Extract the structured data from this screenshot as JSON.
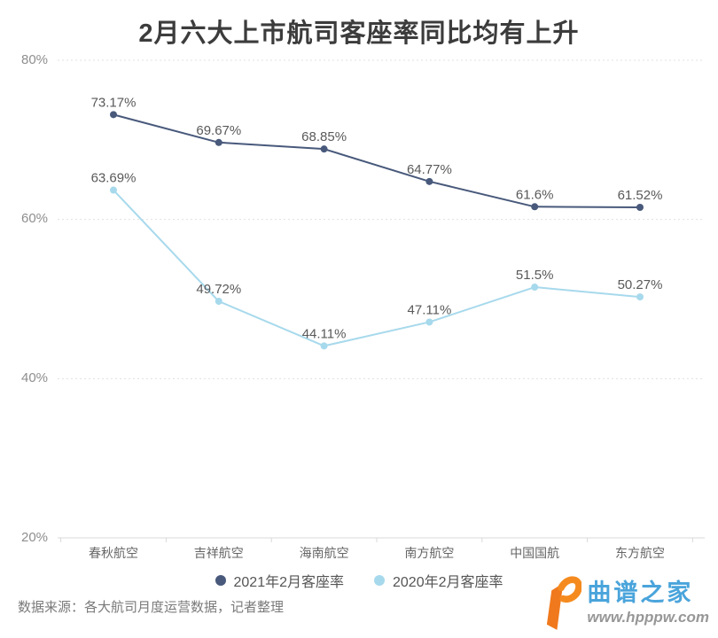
{
  "chart_data": {
    "type": "line",
    "title": "2月六大上市航司客座率同比均有上升",
    "categories": [
      "春秋航空",
      "吉祥航空",
      "海南航空",
      "南方航空",
      "中国国航",
      "东方航空"
    ],
    "series": [
      {
        "name": "2021年2月客座率",
        "color": "#48597b",
        "values": [
          73.17,
          69.67,
          68.85,
          64.77,
          61.6,
          61.52
        ],
        "labels": [
          "73.17%",
          "69.67%",
          "68.85%",
          "64.77%",
          "61.6%",
          "61.52%"
        ]
      },
      {
        "name": "2020年2月客座率",
        "color": "#a7d9ec",
        "values": [
          63.69,
          49.72,
          44.11,
          47.11,
          51.5,
          50.27
        ],
        "labels": [
          "63.69%",
          "49.72%",
          "44.11%",
          "47.11%",
          "51.5%",
          "50.27%"
        ]
      }
    ],
    "y_axis": {
      "min": 20,
      "max": 80,
      "tick_values": [
        80,
        60,
        40,
        20
      ],
      "tick_labels": [
        "80%",
        "60%",
        "40%",
        "20%"
      ]
    },
    "grid": "dotted-horizontal",
    "legend_position": "bottom",
    "label_color": "#595959",
    "axis_label_color": "#8e8e8e",
    "category_label_color": "#666666",
    "gridline_color": "#e0e0e0",
    "axisline_color": "#d9d9d9"
  },
  "footer": {
    "source_text": "数据来源：各大航司月度运营数据，记者整理"
  },
  "watermark": {
    "site_name": "曲谱之家",
    "site_url": "www.hpppw.com",
    "logo_color": "#f0791d",
    "name_color": "#4aa4db",
    "url_color": "#979797"
  }
}
